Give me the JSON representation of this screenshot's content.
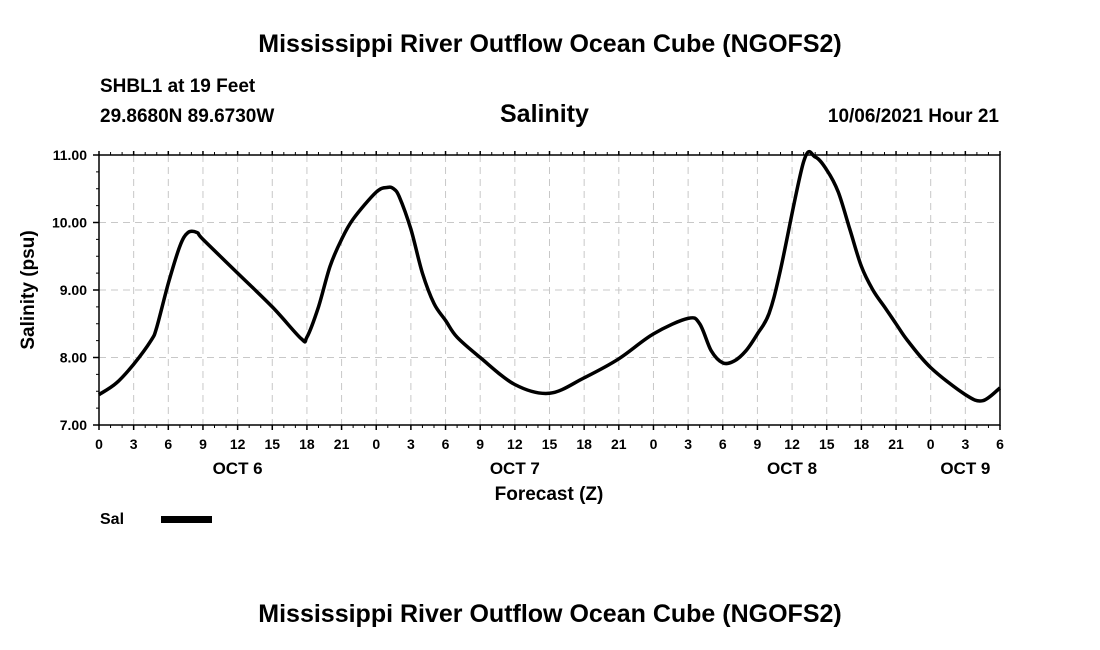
{
  "header": {
    "title": "Mississippi River Outflow Ocean Cube (NGOFS2)",
    "footer_title": "Mississippi River Outflow Ocean Cube (NGOFS2)",
    "station": "SHBL1 at 19 Feet",
    "coords": "29.8680N  89.6730W",
    "subtitle": "Salinity",
    "datetime": "10/06/2021 Hour 21"
  },
  "legend": {
    "label": "Sal"
  },
  "chart_data": {
    "type": "line",
    "title": "Salinity",
    "xlabel": "Forecast (Z)",
    "ylabel": "Salinity (psu)",
    "x_unit": "hours since OCT 6 00Z",
    "xlim": [
      0,
      78
    ],
    "ylim": [
      7.0,
      11.0
    ],
    "grid": true,
    "line_color": "#000000",
    "x_ticks": [
      0,
      3,
      6,
      9,
      12,
      15,
      18,
      21,
      24,
      27,
      30,
      33,
      36,
      39,
      42,
      45,
      48,
      51,
      54,
      57,
      60,
      63,
      66,
      69,
      72,
      75,
      78
    ],
    "x_tick_labels": [
      "0",
      "3",
      "6",
      "9",
      "12",
      "15",
      "18",
      "21",
      "0",
      "3",
      "6",
      "9",
      "12",
      "15",
      "18",
      "21",
      "0",
      "3",
      "6",
      "9",
      "12",
      "15",
      "18",
      "21",
      "0",
      "3",
      "6"
    ],
    "y_ticks": [
      7.0,
      8.0,
      9.0,
      10.0,
      11.0
    ],
    "y_tick_labels": [
      "7.00",
      "8.00",
      "9.00",
      "10.00",
      "11.00"
    ],
    "day_labels": [
      {
        "x": 12,
        "label": "OCT 6"
      },
      {
        "x": 36,
        "label": "OCT 7"
      },
      {
        "x": 60,
        "label": "OCT 8"
      },
      {
        "x": 75,
        "label": "OCT 9"
      }
    ],
    "series": [
      {
        "name": "Sal",
        "x": [
          0,
          1.5,
          3,
          4.5,
          5,
          6,
          7,
          7.7,
          8.5,
          9,
          12,
          15,
          17.5,
          18,
          19,
          20,
          21,
          22,
          24,
          25,
          25.5,
          26,
          27,
          28,
          29,
          30,
          31,
          33,
          36,
          39,
          42,
          45,
          48,
          51,
          52,
          53,
          54,
          55,
          56,
          57,
          58,
          59,
          61,
          62,
          63,
          64,
          65,
          66,
          67,
          68,
          69,
          70,
          72,
          75,
          76.5,
          78
        ],
        "y": [
          7.45,
          7.62,
          7.9,
          8.25,
          8.45,
          9.1,
          9.65,
          9.85,
          9.85,
          9.75,
          9.25,
          8.75,
          8.28,
          8.3,
          8.75,
          9.35,
          9.75,
          10.05,
          10.45,
          10.52,
          10.5,
          10.38,
          9.9,
          9.25,
          8.8,
          8.55,
          8.3,
          8.0,
          7.6,
          7.47,
          7.7,
          7.98,
          8.35,
          8.58,
          8.5,
          8.1,
          7.92,
          7.95,
          8.1,
          8.35,
          8.65,
          9.3,
          10.9,
          10.97,
          10.78,
          10.45,
          9.9,
          9.35,
          9.0,
          8.75,
          8.5,
          8.25,
          7.85,
          7.45,
          7.36,
          7.55
        ]
      }
    ]
  }
}
